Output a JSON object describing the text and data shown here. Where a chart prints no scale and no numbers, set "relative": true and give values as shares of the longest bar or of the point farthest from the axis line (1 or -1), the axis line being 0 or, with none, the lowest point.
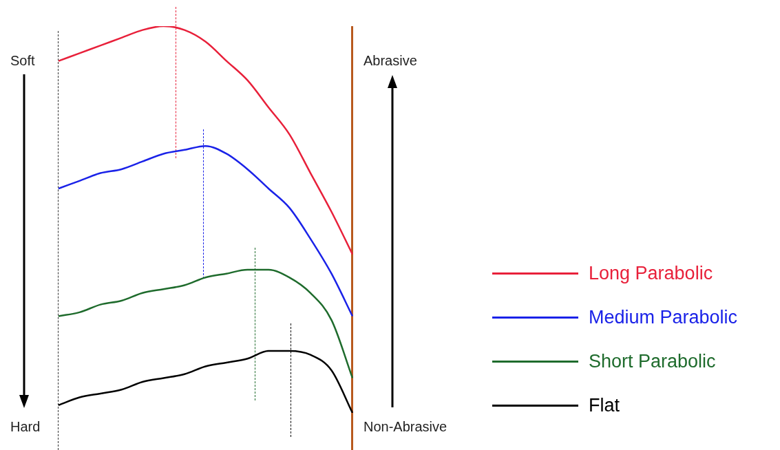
{
  "chart_data": {
    "type": "line",
    "relative": true,
    "categories": [
      null,
      null,
      null,
      null,
      null,
      null,
      null,
      null,
      null,
      null,
      null,
      null,
      null,
      null,
      null
    ],
    "series": [
      {
        "name": "Long Parabolic",
        "color": "#e8203a",
        "values": [
          0.91,
          0.93,
          0.95,
          0.97,
          0.99,
          1.0,
          0.99,
          0.96,
          0.91,
          0.86,
          0.79,
          0.72,
          0.62,
          0.52,
          0.41
        ]
      },
      {
        "name": "Medium Parabolic",
        "color": "#1a22e8",
        "values": [
          0.58,
          0.6,
          0.62,
          0.63,
          0.65,
          0.67,
          0.68,
          0.69,
          0.67,
          0.63,
          0.58,
          0.53,
          0.45,
          0.36,
          0.25
        ]
      },
      {
        "name": "Short Parabolic",
        "color": "#1e6b2c",
        "values": [
          0.25,
          0.26,
          0.28,
          0.29,
          0.31,
          0.32,
          0.33,
          0.35,
          0.36,
          0.37,
          0.37,
          0.35,
          0.31,
          0.24,
          0.09
        ]
      },
      {
        "name": "Flat",
        "color": "#000000",
        "values": [
          0.02,
          0.04,
          0.05,
          0.06,
          0.08,
          0.09,
          0.1,
          0.12,
          0.13,
          0.14,
          0.16,
          0.16,
          0.15,
          0.11,
          0.0
        ]
      }
    ],
    "annotations": [
      "Soft",
      "Hard",
      "Abrasive",
      "Non-Abrasive"
    ],
    "legend": "right",
    "marker": "none",
    "line_style": "solid"
  }
}
